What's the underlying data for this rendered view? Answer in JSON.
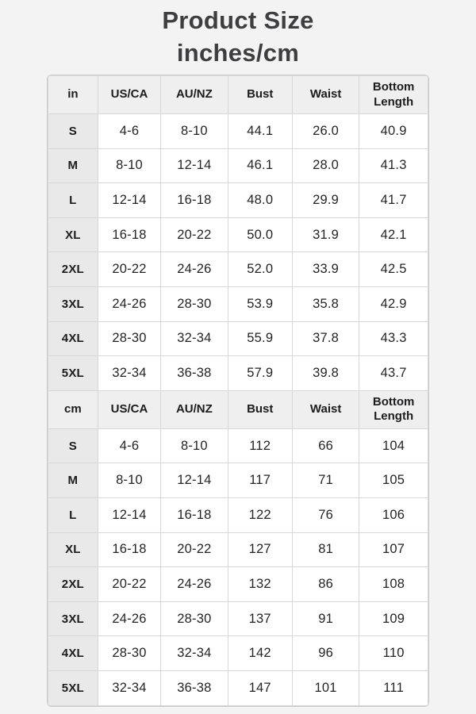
{
  "title": {
    "line1": "Product Size",
    "line2": "inches/cm"
  },
  "chart_data": {
    "type": "table",
    "title": "Product Size inches/cm",
    "sections": [
      {
        "unit_label": "in",
        "columns": [
          "in",
          "US/CA",
          "AU/NZ",
          "Bust",
          "Waist",
          "Bottom Length"
        ],
        "rows": [
          [
            "S",
            "4-6",
            "8-10",
            "44.1",
            "26.0",
            "40.9"
          ],
          [
            "M",
            "8-10",
            "12-14",
            "46.1",
            "28.0",
            "41.3"
          ],
          [
            "L",
            "12-14",
            "16-18",
            "48.0",
            "29.9",
            "41.7"
          ],
          [
            "XL",
            "16-18",
            "20-22",
            "50.0",
            "31.9",
            "42.1"
          ],
          [
            "2XL",
            "20-22",
            "24-26",
            "52.0",
            "33.9",
            "42.5"
          ],
          [
            "3XL",
            "24-26",
            "28-30",
            "53.9",
            "35.8",
            "42.9"
          ],
          [
            "4XL",
            "28-30",
            "32-34",
            "55.9",
            "37.8",
            "43.3"
          ],
          [
            "5XL",
            "32-34",
            "36-38",
            "57.9",
            "39.8",
            "43.7"
          ]
        ]
      },
      {
        "unit_label": "cm",
        "columns": [
          "cm",
          "US/CA",
          "AU/NZ",
          "Bust",
          "Waist",
          "Bottom Length"
        ],
        "rows": [
          [
            "S",
            "4-6",
            "8-10",
            "112",
            "66",
            "104"
          ],
          [
            "M",
            "8-10",
            "12-14",
            "117",
            "71",
            "105"
          ],
          [
            "L",
            "12-14",
            "16-18",
            "122",
            "76",
            "106"
          ],
          [
            "XL",
            "16-18",
            "20-22",
            "127",
            "81",
            "107"
          ],
          [
            "2XL",
            "20-22",
            "24-26",
            "132",
            "86",
            "108"
          ],
          [
            "3XL",
            "24-26",
            "28-30",
            "137",
            "91",
            "109"
          ],
          [
            "4XL",
            "28-30",
            "32-34",
            "142",
            "96",
            "110"
          ],
          [
            "5XL",
            "32-34",
            "36-38",
            "147",
            "101",
            "111"
          ]
        ]
      }
    ]
  },
  "colors": {
    "page_background": "#f3f3f4",
    "header_cell_background": "#f0efef",
    "size_column_background": "#e9e9e9",
    "cell_background": "#ffffff",
    "border": "#d7d7d7",
    "title_text": "#3e3e40",
    "cell_text": "#242426"
  }
}
